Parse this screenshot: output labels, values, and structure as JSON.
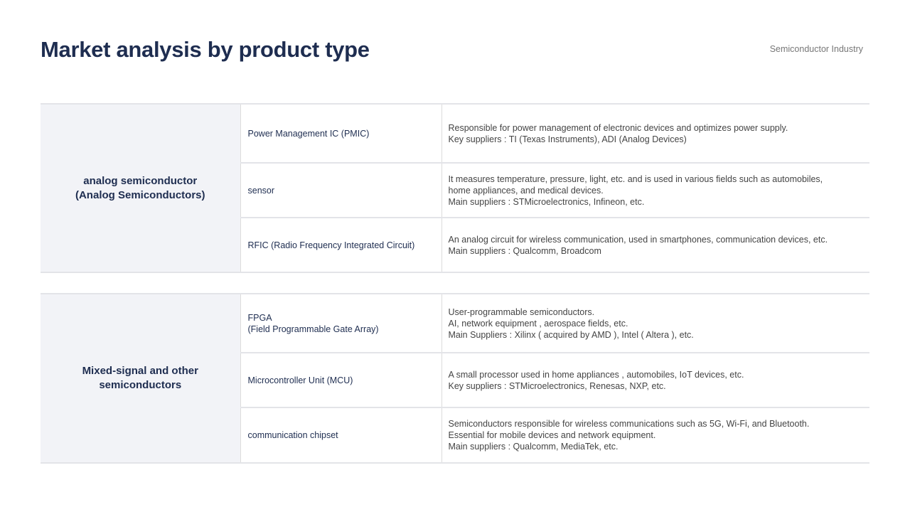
{
  "header": {
    "title": "Market analysis by product type",
    "subtitle": "Semiconductor Industry"
  },
  "groups": [
    {
      "category": [
        "analog semiconductor",
        "(Analog Semiconductors)"
      ],
      "rows": [
        {
          "name": [
            "Power Management IC (PMIC)"
          ],
          "desc": [
            "Responsible for power management of electronic devices and optimizes power supply.",
            "Key suppliers : TI (Texas Instruments),  ADI (Analog Devices)"
          ]
        },
        {
          "name": [
            "sensor"
          ],
          "desc": [
            "It measures temperature, pressure, light, etc. and is used in various fields such as automobiles,",
            "home appliances, and medical devices.",
            "Main suppliers : STMicroelectronics, Infineon, etc."
          ]
        },
        {
          "name": [
            "RFIC (Radio Frequency Integrated Circuit)"
          ],
          "desc": [
            "An analog circuit for wireless communication, used in smartphones, communication devices, etc.",
            "Main suppliers : Qualcomm, Broadcom"
          ]
        }
      ]
    },
    {
      "category": [
        "Mixed-signal and other",
        "semiconductors"
      ],
      "rows": [
        {
          "name": [
            "FPGA",
            "(Field Programmable Gate Array)"
          ],
          "desc": [
            "User-programmable semiconductors.",
            "AI, network equipment , aerospace fields, etc.",
            "Main Suppliers : Xilinx ( acquired by AMD ), Intel ( Altera ), etc."
          ]
        },
        {
          "name": [
            "Microcontroller Unit (MCU)"
          ],
          "desc": [
            "A small processor used in home appliances , automobiles, IoT devices, etc.",
            "Key suppliers : STMicroelectronics, Renesas, NXP, etc."
          ]
        },
        {
          "name": [
            "communication chipset"
          ],
          "desc": [
            "Semiconductors responsible for wireless communications such as 5G, Wi-Fi, and Bluetooth.",
            "Essential for mobile devices and network equipment.",
            "Main suppliers : Qualcomm, MediaTek, etc."
          ]
        }
      ]
    }
  ]
}
